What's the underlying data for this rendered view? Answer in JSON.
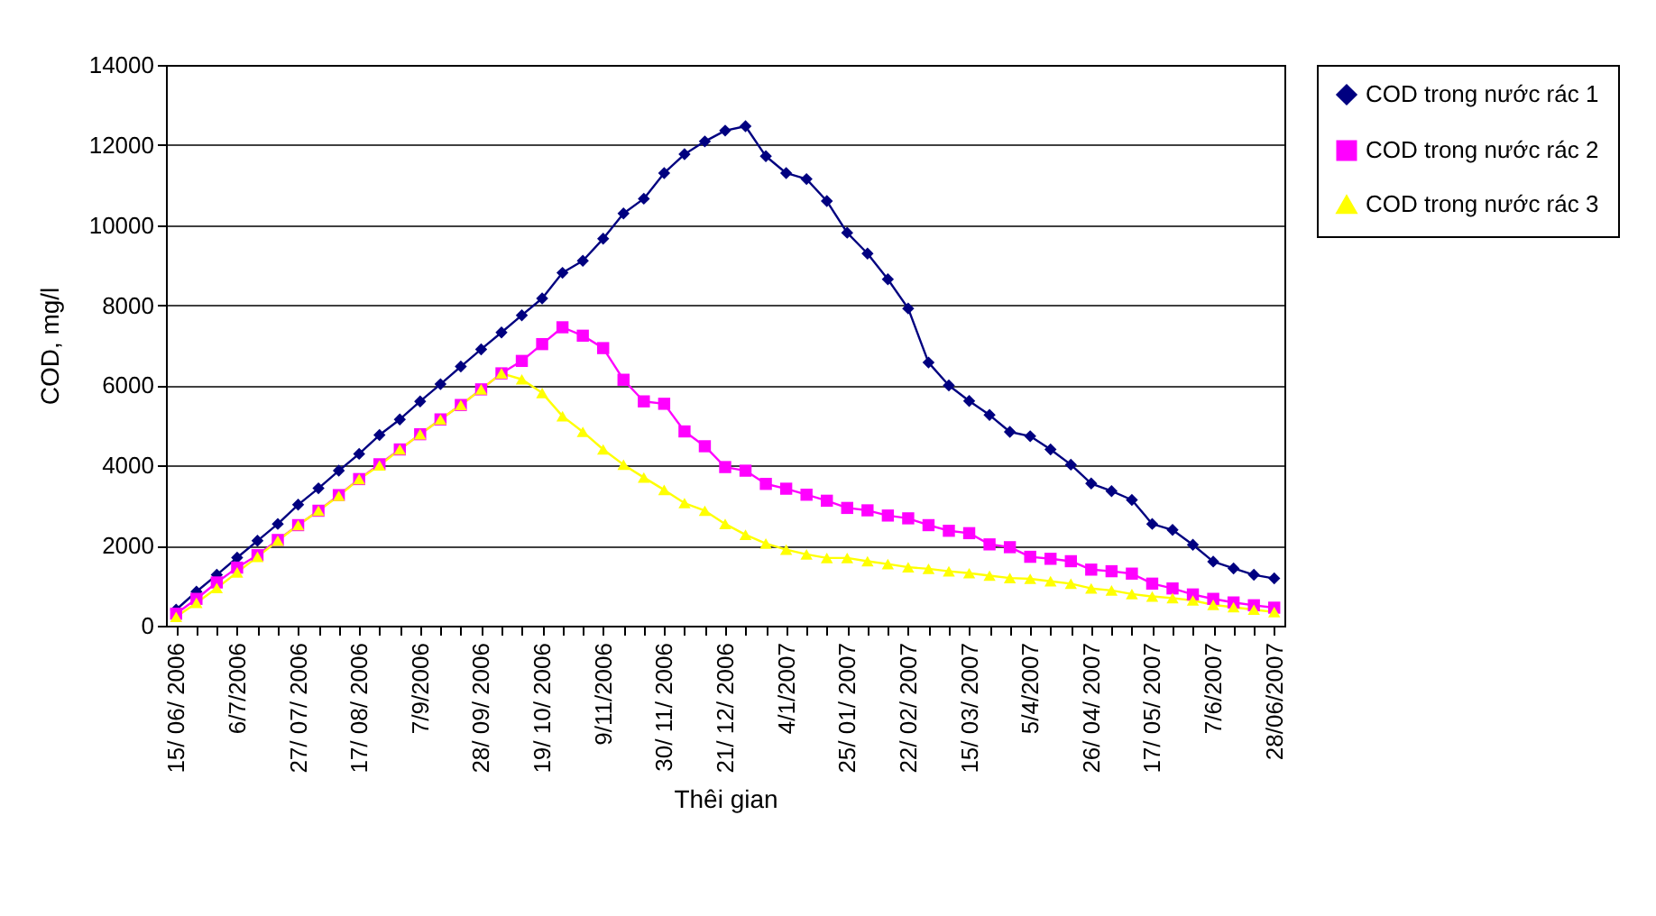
{
  "chart_data": {
    "type": "line",
    "xlabel": "Thêi gian",
    "ylabel": "COD, mg/l",
    "categories": [
      "15/ 06/ 2006",
      null,
      null,
      "6/7/2006",
      null,
      null,
      "27/ 07/ 2006",
      null,
      null,
      "17/ 08/ 2006",
      null,
      null,
      "7/9/2006",
      null,
      null,
      "28/ 09/ 2006",
      null,
      null,
      "19/ 10/ 2006",
      null,
      null,
      "9/11/2006",
      null,
      null,
      "30/ 11/ 2006",
      null,
      null,
      "21/ 12/ 2006",
      null,
      null,
      "4/1/2007",
      null,
      null,
      "25/ 01/ 2007",
      null,
      null,
      "22/ 02/ 2007",
      null,
      null,
      "15/ 03/ 2007",
      null,
      null,
      "5/4/2007",
      null,
      null,
      "26/ 04/ 2007",
      null,
      null,
      "17/ 05/ 2007",
      null,
      null,
      "7/6/2007",
      null,
      null,
      "28/06/2007"
    ],
    "series": [
      {
        "name": "COD trong nước rác 1",
        "color": "#000080",
        "marker": "diamond",
        "values": [
          400,
          850,
          1270,
          1700,
          2120,
          2540,
          3020,
          3430,
          3870,
          4290,
          4760,
          5150,
          5600,
          6030,
          6470,
          6900,
          7320,
          7750,
          8170,
          8810,
          9110,
          9660,
          10290,
          10660,
          11300,
          11770,
          12090,
          12360,
          12470,
          11720,
          11300,
          11150,
          10600,
          9810,
          9290,
          8650,
          7920,
          6570,
          6000,
          5610,
          5260,
          4840,
          4730,
          4400,
          4020,
          3550,
          3360,
          3140,
          2540,
          2390,
          2020,
          1600,
          1430,
          1270,
          1180
        ]
      },
      {
        "name": "COD trong nước rác 2",
        "color": "#ff00ff",
        "marker": "square",
        "values": [
          300,
          670,
          1080,
          1450,
          1760,
          2140,
          2510,
          2870,
          3260,
          3660,
          4030,
          4400,
          4780,
          5150,
          5510,
          5900,
          6300,
          6610,
          7030,
          7450,
          7240,
          6930,
          6140,
          5600,
          5540,
          4850,
          4480,
          3960,
          3870,
          3540,
          3420,
          3270,
          3120,
          2940,
          2880,
          2750,
          2680,
          2510,
          2370,
          2310,
          2030,
          1960,
          1720,
          1670,
          1610,
          1400,
          1360,
          1300,
          1050,
          930,
          780,
          670,
          580,
          510,
          450
        ]
      },
      {
        "name": "COD trong nước rác 3",
        "color": "#ffff00",
        "marker": "triangle",
        "values": [
          220,
          570,
          940,
          1330,
          1720,
          2120,
          2510,
          2870,
          3240,
          3660,
          4000,
          4400,
          4780,
          5150,
          5510,
          5900,
          6300,
          6150,
          5810,
          5230,
          4840,
          4400,
          4020,
          3700,
          3390,
          3060,
          2870,
          2540,
          2270,
          2050,
          1900,
          1780,
          1690,
          1690,
          1610,
          1540,
          1460,
          1420,
          1360,
          1310,
          1250,
          1190,
          1170,
          1110,
          1050,
          930,
          880,
          790,
          730,
          690,
          630,
          520,
          460,
          400,
          340
        ]
      }
    ],
    "ylim": [
      0,
      14000
    ],
    "yticks": [
      0,
      2000,
      4000,
      6000,
      8000,
      10000,
      12000,
      14000
    ],
    "grid": "y",
    "legend": "right",
    "line_style": "solid"
  }
}
